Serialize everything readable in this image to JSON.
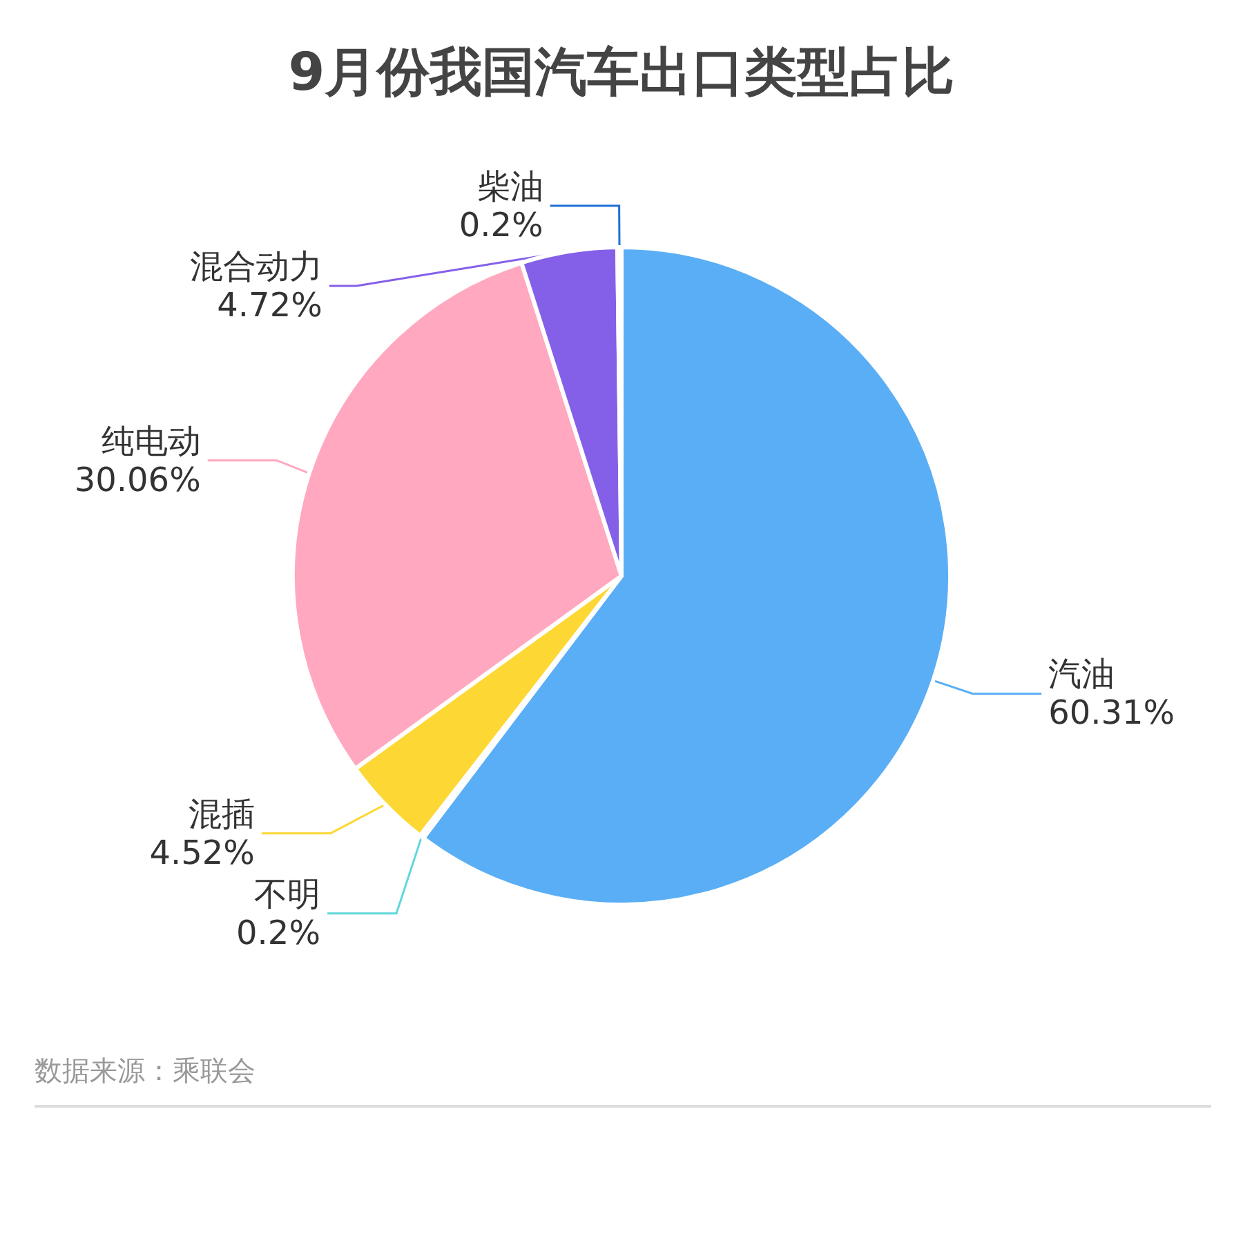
{
  "chart_data": {
    "type": "pie",
    "title": "9月份我国汽车出口类型占比",
    "categories": [
      "汽油",
      "不明",
      "混插",
      "纯电动",
      "混合动力",
      "柴油"
    ],
    "values": [
      60.31,
      0.2,
      4.52,
      30.06,
      4.72,
      0.2
    ],
    "colors": [
      "#5aaef5",
      "#5fd8dc",
      "#fdd835",
      "#ffa8bf",
      "#8460e8",
      "#1f6fd8"
    ],
    "value_labels": [
      "60.31%",
      "0.2%",
      "4.52%",
      "30.06%",
      "4.72%",
      "0.2%"
    ],
    "legend": false,
    "annotations": [
      "数据来源：乘联会"
    ]
  }
}
